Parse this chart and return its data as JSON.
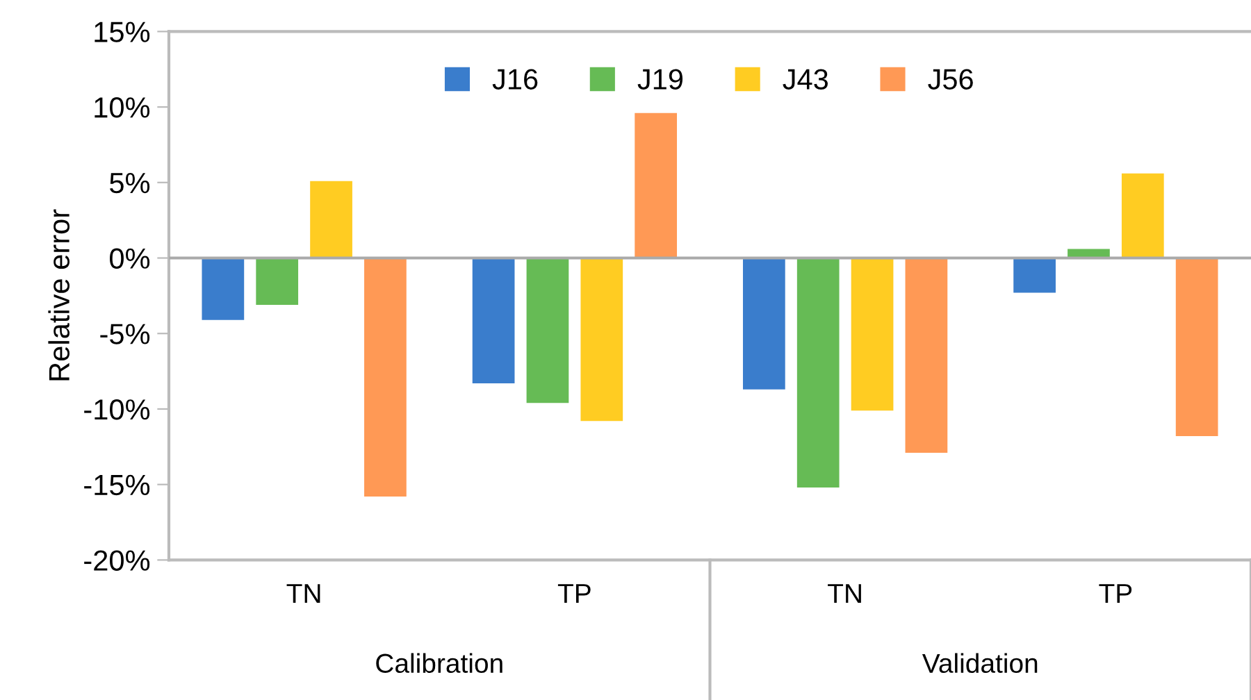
{
  "chart_data": {
    "type": "bar",
    "ylabel": "Relative error",
    "categories": [
      "TN",
      "TP",
      "TN",
      "TP"
    ],
    "series": [
      {
        "name": "J16",
        "color": "#3a7dcc",
        "values": [
          -4.1,
          -8.3,
          -8.7,
          -2.3
        ]
      },
      {
        "name": "J19",
        "color": "#66bb55",
        "values": [
          -3.1,
          -9.6,
          -15.2,
          0.6
        ]
      },
      {
        "name": "J43",
        "color": "#ffcc22",
        "values": [
          5.1,
          -10.8,
          -10.1,
          5.6
        ]
      },
      {
        "name": "J56",
        "color": "#ff9955",
        "values": [
          -15.8,
          9.6,
          -12.9,
          -11.8
        ]
      }
    ],
    "ylim": [
      -20,
      15
    ],
    "yticks": [
      {
        "value": -20,
        "label": "-20%"
      },
      {
        "value": -15,
        "label": "-15%"
      },
      {
        "value": -10,
        "label": "-10%"
      },
      {
        "value": -5,
        "label": "-5%"
      },
      {
        "value": 0,
        "label": "0%"
      },
      {
        "value": 5,
        "label": "5%"
      },
      {
        "value": 10,
        "label": "10%"
      },
      {
        "value": 15,
        "label": "15%"
      }
    ],
    "annotations": [
      "Calibration",
      "Validation"
    ],
    "ref_lines": [
      {
        "axis": "y",
        "value": 0,
        "color": "#aaaaaa"
      }
    ],
    "grid": false,
    "legend": "top"
  }
}
